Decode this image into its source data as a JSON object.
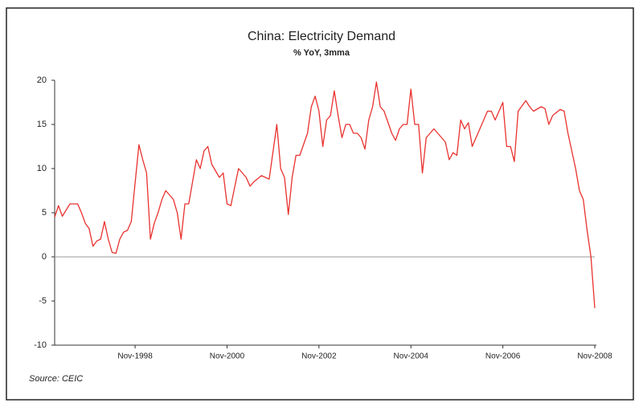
{
  "chart_data": {
    "type": "line",
    "title": "China: Electricity Demand",
    "subtitle": "% YoY, 3mma",
    "source": "Source: CEIC",
    "x": [
      "1997-02",
      "1997-03",
      "1997-04",
      "1997-06",
      "1997-08",
      "1997-09",
      "1997-10",
      "1997-11",
      "1997-12",
      "1998-01",
      "1998-02",
      "1998-03",
      "1998-04",
      "1998-05",
      "1998-06",
      "1998-07",
      "1998-08",
      "1998-09",
      "1998-10",
      "1998-12",
      "1999-01",
      "1999-02",
      "1999-03",
      "1999-04",
      "1999-05",
      "1999-06",
      "1999-07",
      "1999-09",
      "1999-10",
      "1999-11",
      "1999-12",
      "2000-01",
      "2000-03",
      "2000-04",
      "2000-05",
      "2000-06",
      "2000-07",
      "2000-09",
      "2000-10",
      "2000-11",
      "2000-12",
      "2001-02",
      "2001-04",
      "2001-05",
      "2001-06",
      "2001-08",
      "2001-09",
      "2001-10",
      "2001-12",
      "2002-01",
      "2002-02",
      "2002-03",
      "2002-04",
      "2002-05",
      "2002-06",
      "2002-08",
      "2002-09",
      "2002-10",
      "2002-11",
      "2002-12",
      "2003-01",
      "2003-02",
      "2003-03",
      "2003-04",
      "2003-05",
      "2003-06",
      "2003-07",
      "2003-08",
      "2003-09",
      "2003-10",
      "2003-11",
      "2003-12",
      "2004-01",
      "2004-02",
      "2004-03",
      "2004-04",
      "2004-06",
      "2004-07",
      "2004-08",
      "2004-09",
      "2004-10",
      "2004-11",
      "2004-12",
      "2005-01",
      "2005-02",
      "2005-03",
      "2005-05",
      "2005-06",
      "2005-08",
      "2005-09",
      "2005-10",
      "2005-11",
      "2005-12",
      "2006-01",
      "2006-02",
      "2006-03",
      "2006-04",
      "2006-06",
      "2006-07",
      "2006-08",
      "2006-09",
      "2006-11",
      "2006-12",
      "2007-01",
      "2007-02",
      "2007-03",
      "2007-05",
      "2007-06",
      "2007-07",
      "2007-09",
      "2007-10",
      "2007-11",
      "2007-12",
      "2008-02",
      "2008-03",
      "2008-04",
      "2008-05",
      "2008-06",
      "2008-07",
      "2008-08",
      "2008-09",
      "2008-10",
      "2008-11"
    ],
    "series": [
      {
        "name": "Electricity demand",
        "color": "#e8322e",
        "values": [
          4.5,
          5.8,
          4.6,
          6,
          6,
          5,
          3.8,
          3.2,
          1.2,
          1.8,
          2,
          4,
          2,
          0.5,
          0.4,
          2,
          2.8,
          3,
          4,
          12.7,
          11,
          9.5,
          2,
          3.8,
          5,
          6.5,
          7.5,
          6.5,
          5,
          2,
          6,
          6,
          11,
          10,
          12,
          12.5,
          10.5,
          9,
          9.5,
          6,
          5.8,
          10,
          9,
          8,
          8.5,
          9.2,
          9,
          8.8,
          15,
          10,
          9,
          4.8,
          9,
          11.5,
          11.5,
          14,
          17,
          18.2,
          16.5,
          12.5,
          15.5,
          16,
          18.8,
          16,
          13.5,
          15,
          15,
          14,
          14,
          13.5,
          12.2,
          15.5,
          17,
          19.8,
          17,
          16.5,
          14,
          13.2,
          14.5,
          15,
          15,
          19,
          15,
          15,
          9.5,
          13.5,
          14.5,
          14,
          13,
          11,
          11.8,
          11.5,
          15.5,
          14.5,
          15.2,
          12.5,
          13.5,
          15.5,
          16.5,
          16.5,
          15.5,
          17.5,
          12.5,
          12.5,
          10.8,
          16.5,
          17.7,
          17,
          16.5,
          17,
          16.8,
          15,
          16,
          16.7,
          16.5,
          14,
          12,
          10,
          7.5,
          6.5,
          3,
          0,
          -5.8
        ]
      }
    ],
    "xlim": [
      "1997-02",
      "2008-11"
    ],
    "xticks": [
      {
        "value": "1998-11",
        "label": "Nov-1998"
      },
      {
        "value": "2000-11",
        "label": "Nov-2000"
      },
      {
        "value": "2002-11",
        "label": "Nov-2002"
      },
      {
        "value": "2004-11",
        "label": "Nov-2004"
      },
      {
        "value": "2006-11",
        "label": "Nov-2006"
      },
      {
        "value": "2008-11",
        "label": "Nov-2008"
      }
    ],
    "ylim": [
      -10,
      20
    ],
    "yticks": [
      -10,
      -5,
      0,
      5,
      10,
      15,
      20
    ],
    "zero_line": true
  }
}
